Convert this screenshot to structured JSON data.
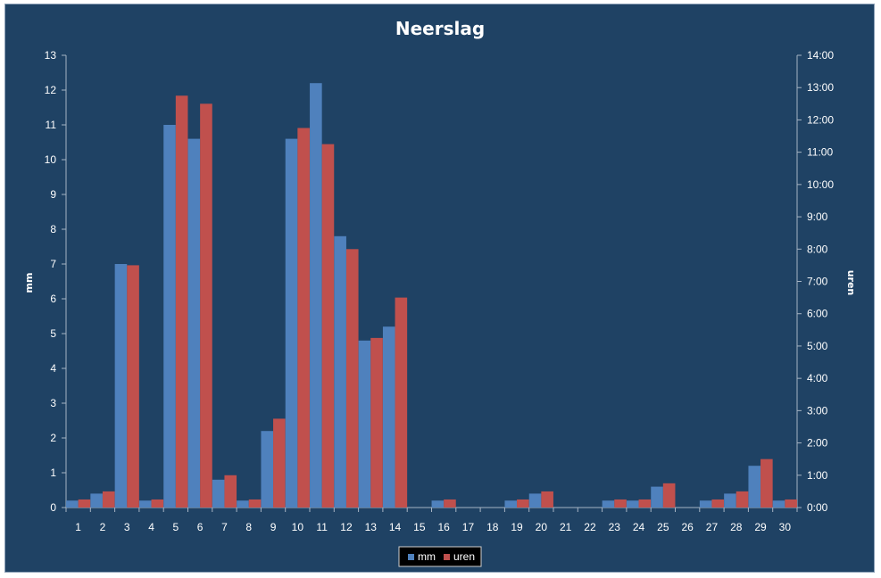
{
  "chart_data": {
    "type": "bar",
    "title": "Neerslag",
    "categories": [
      "1",
      "2",
      "3",
      "4",
      "5",
      "6",
      "7",
      "8",
      "9",
      "10",
      "11",
      "12",
      "13",
      "14",
      "15",
      "16",
      "17",
      "18",
      "19",
      "20",
      "21",
      "22",
      "23",
      "24",
      "25",
      "26",
      "27",
      "28",
      "29",
      "30"
    ],
    "series": [
      {
        "name": "mm",
        "color": "#4f81bd",
        "axis": "left",
        "values": [
          0.2,
          0.4,
          7.0,
          0.2,
          11.0,
          10.6,
          0.8,
          0.2,
          2.2,
          10.6,
          12.2,
          7.8,
          4.8,
          5.2,
          0,
          0.2,
          0,
          0,
          0.2,
          0.4,
          0,
          0,
          0.2,
          0.2,
          0.6,
          0,
          0.2,
          0.4,
          1.2,
          0.2
        ]
      },
      {
        "name": "uren",
        "color": "#c0504d",
        "axis": "right",
        "values_hours": [
          0.25,
          0.5,
          7.5,
          0.25,
          12.75,
          12.5,
          1.0,
          0.25,
          2.75,
          11.75,
          11.25,
          8.0,
          5.25,
          6.5,
          0,
          0.25,
          0,
          0,
          0.25,
          0.5,
          0,
          0,
          0.25,
          0.25,
          0.75,
          0,
          0.25,
          0.5,
          1.5,
          0.25
        ]
      }
    ],
    "y_left": {
      "label": "mm",
      "ylim": [
        0,
        13
      ],
      "ticks": [
        "0",
        "1",
        "2",
        "3",
        "4",
        "5",
        "6",
        "7",
        "8",
        "9",
        "10",
        "11",
        "12",
        "13"
      ]
    },
    "y_right": {
      "label": "uren",
      "ylim_hours": [
        0,
        14
      ],
      "ticks": [
        "0:00",
        "1:00",
        "2:00",
        "3:00",
        "4:00",
        "5:00",
        "6:00",
        "7:00",
        "8:00",
        "9:00",
        "10:00",
        "11:00",
        "12:00",
        "13:00",
        "14:00"
      ]
    },
    "grid": false,
    "legend": {
      "position": "bottom",
      "entries": [
        "mm",
        "uren"
      ]
    },
    "background": "#1f4264",
    "text_color": "#ffffff"
  }
}
